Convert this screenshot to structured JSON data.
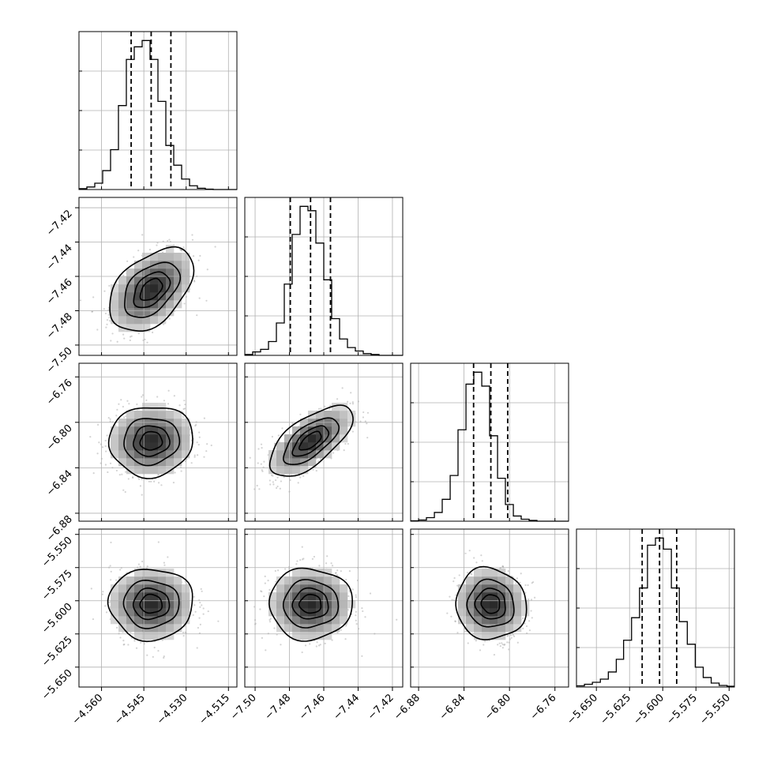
{
  "chart_data": {
    "type": "corner",
    "parameters": [
      {
        "index": 0,
        "range": [
          -4.568,
          -4.512
        ],
        "ticks": [
          -4.56,
          -4.545,
          -4.53,
          -4.515
        ],
        "tick_labels": [
          "−4.560",
          "−4.545",
          "−4.530",
          "−4.515"
        ],
        "quantiles": [
          -4.5495,
          -4.5424,
          -4.5354
        ],
        "hist": {
          "edges": [
            -4.568,
            -4.5652,
            -4.5624,
            -4.5596,
            -4.5568,
            -4.554,
            -4.5512,
            -4.5484,
            -4.5456,
            -4.5428,
            -4.54,
            -4.5372,
            -4.5344,
            -4.5316,
            -4.5288,
            -4.526,
            -4.5232,
            -4.5204,
            -4.5176,
            -4.5148,
            -4.512
          ],
          "counts": [
            2,
            6,
            15,
            45,
            95,
            200,
            310,
            340,
            355,
            310,
            210,
            105,
            58,
            25,
            9,
            3,
            1,
            0,
            0,
            0
          ]
        }
      },
      {
        "index": 1,
        "range": [
          -7.506,
          -7.414
        ],
        "ticks": [
          -7.5,
          -7.48,
          -7.46,
          -7.44,
          -7.42
        ],
        "tick_labels": [
          "−7.50",
          "−7.48",
          "−7.46",
          "−7.44",
          "−7.42"
        ],
        "quantiles": [
          -7.4795,
          -7.4677,
          -7.4561
        ],
        "hist": {
          "edges": [
            -7.506,
            -7.5014,
            -7.4968,
            -7.4922,
            -7.4876,
            -7.483,
            -7.4784,
            -7.4738,
            -7.4692,
            -7.4646,
            -7.46,
            -7.4554,
            -7.4508,
            -7.4462,
            -7.4416,
            -7.437,
            -7.4324,
            -7.4278,
            -7.4232,
            -7.4186,
            -7.414
          ],
          "counts": [
            2,
            8,
            14,
            32,
            75,
            165,
            280,
            345,
            335,
            260,
            175,
            85,
            38,
            18,
            10,
            4,
            2,
            0,
            0,
            0
          ]
        }
      },
      {
        "index": 2,
        "range": [
          -6.887,
          -6.748
        ],
        "ticks": [
          -6.88,
          -6.84,
          -6.8,
          -6.76
        ],
        "tick_labels": [
          "−6.88",
          "−6.84",
          "−6.80",
          "−6.76"
        ],
        "quantiles": [
          -6.8316,
          -6.8164,
          -6.8016
        ],
        "hist": {
          "edges": [
            -6.887,
            -6.88,
            -6.8731,
            -6.8661,
            -6.8592,
            -6.8522,
            -6.8453,
            -6.8383,
            -6.8314,
            -6.8244,
            -6.8175,
            -6.8105,
            -6.8036,
            -6.7966,
            -6.7897,
            -6.7827,
            -6.7758,
            -6.7688,
            -6.7619,
            -6.7549,
            -6.748
          ],
          "counts": [
            1,
            3,
            9,
            22,
            55,
            115,
            230,
            345,
            375,
            340,
            215,
            108,
            42,
            13,
            5,
            2,
            0,
            0,
            0,
            0
          ]
        }
      },
      {
        "index": 3,
        "range": [
          -5.665,
          -5.546
        ],
        "ticks": [
          -5.65,
          -5.625,
          -5.6,
          -5.575,
          -5.55
        ],
        "tick_labels": [
          "−5.650",
          "−5.625",
          "−5.600",
          "−5.575",
          "−5.550"
        ],
        "quantiles": [
          -5.6155,
          -5.6024,
          -5.5895
        ],
        "hist": {
          "edges": [
            -5.665,
            -5.659,
            -5.653,
            -5.647,
            -5.641,
            -5.635,
            -5.6295,
            -5.6235,
            -5.6175,
            -5.6115,
            -5.6055,
            -5.5995,
            -5.5935,
            -5.5875,
            -5.5815,
            -5.5755,
            -5.5695,
            -5.5635,
            -5.5575,
            -5.5515,
            -5.546
          ],
          "counts": [
            3,
            7,
            12,
            20,
            38,
            70,
            118,
            175,
            250,
            358,
            376,
            348,
            250,
            165,
            108,
            50,
            24,
            10,
            4,
            2
          ]
        }
      }
    ],
    "pairs": [
      {
        "x": 0,
        "y": 1,
        "mean": [
          -4.5424,
          -7.4677
        ],
        "sigma": [
          0.0072,
          0.0117
        ],
        "rho": 0.45
      },
      {
        "x": 0,
        "y": 2,
        "mean": [
          -4.5424,
          -6.8164
        ],
        "sigma": [
          0.0072,
          0.015
        ],
        "rho": 0.05
      },
      {
        "x": 1,
        "y": 2,
        "mean": [
          -7.4677,
          -6.8164
        ],
        "sigma": [
          0.0117,
          0.015
        ],
        "rho": 0.65
      },
      {
        "x": 0,
        "y": 3,
        "mean": [
          -4.5424,
          -5.6024
        ],
        "sigma": [
          0.0072,
          0.013
        ],
        "rho": 0.0
      },
      {
        "x": 1,
        "y": 3,
        "mean": [
          -7.4677,
          -5.6024
        ],
        "sigma": [
          0.0117,
          0.013
        ],
        "rho": 0.0
      },
      {
        "x": 2,
        "y": 3,
        "mean": [
          -6.8164,
          -5.6024
        ],
        "sigma": [
          0.015,
          0.013
        ],
        "rho": -0.05
      }
    ],
    "contour_levels_sigma": [
      0.5,
      1.0,
      1.5,
      2.0
    ],
    "scatter_color": "#9e9e9e",
    "grid": true,
    "line_color": "#000000"
  }
}
